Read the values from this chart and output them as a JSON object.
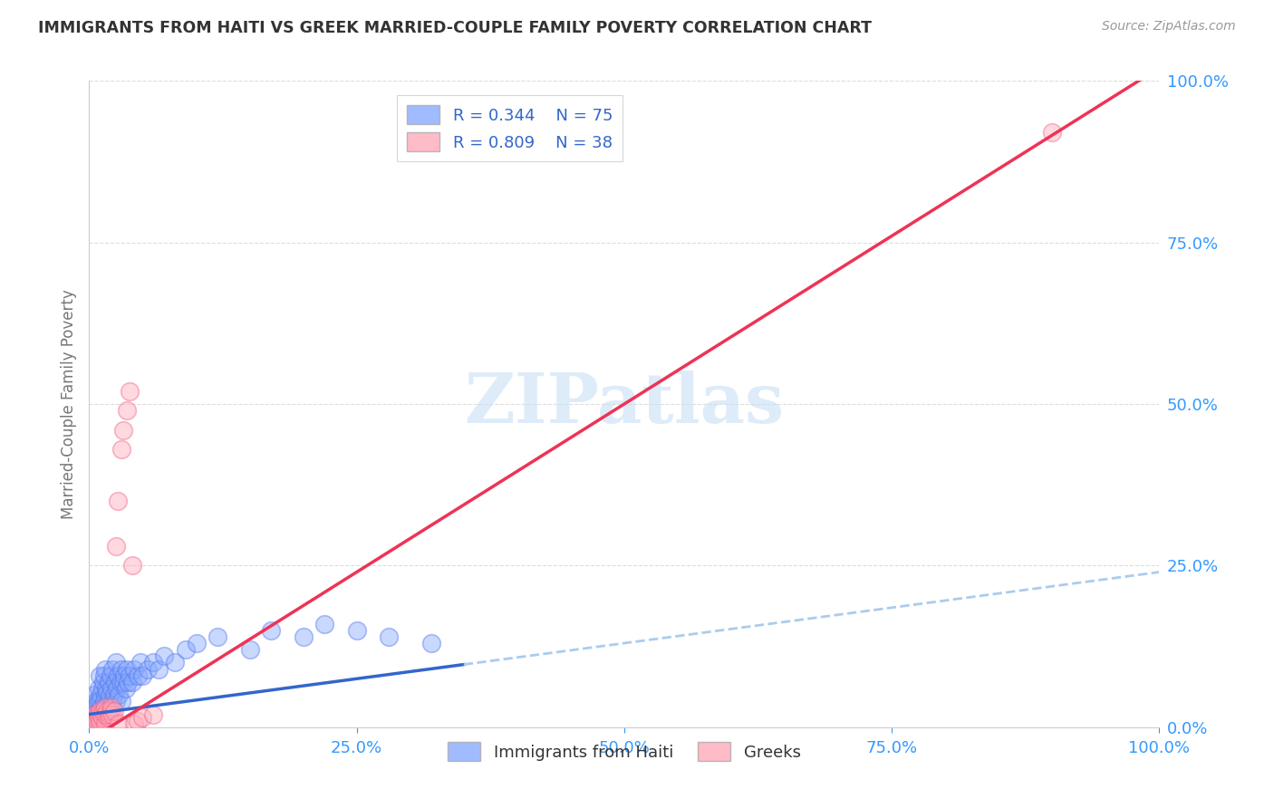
{
  "title": "IMMIGRANTS FROM HAITI VS GREEK MARRIED-COUPLE FAMILY POVERTY CORRELATION CHART",
  "source": "Source: ZipAtlas.com",
  "ylabel": "Married-Couple Family Poverty",
  "xlim": [
    0.0,
    1.0
  ],
  "ylim": [
    0.0,
    1.0
  ],
  "xtick_labels": [
    "0.0%",
    "25.0%",
    "50.0%",
    "75.0%",
    "100.0%"
  ],
  "xtick_positions": [
    0.0,
    0.25,
    0.5,
    0.75,
    1.0
  ],
  "ytick_right_labels": [
    "0.0%",
    "25.0%",
    "50.0%",
    "75.0%",
    "100.0%"
  ],
  "ytick_positions": [
    0.0,
    0.25,
    0.5,
    0.75,
    1.0
  ],
  "haiti_color": "#88aaff",
  "haiti_edge_color": "#5577ee",
  "greek_color": "#ffaabb",
  "greek_edge_color": "#ee6688",
  "haiti_trend_color": "#3366cc",
  "greek_trend_color": "#ee3355",
  "haiti_dash_color": "#aaccee",
  "haiti_R": 0.344,
  "haiti_N": 75,
  "greek_R": 0.809,
  "greek_N": 38,
  "legend_label_haiti": "Immigrants from Haiti",
  "legend_label_greek": "Greeks",
  "watermark": "ZIPatlas",
  "background_color": "#ffffff",
  "grid_color": "#dddddd",
  "axis_color": "#cccccc",
  "title_color": "#333333",
  "tick_color": "#3399ff",
  "haiti_trend_intercept": 0.02,
  "haiti_trend_slope": 0.22,
  "greek_trend_intercept": -0.02,
  "greek_trend_slope": 1.04,
  "haiti_scatter_x": [
    0.002,
    0.003,
    0.004,
    0.005,
    0.005,
    0.006,
    0.006,
    0.007,
    0.007,
    0.008,
    0.008,
    0.009,
    0.009,
    0.01,
    0.01,
    0.01,
    0.011,
    0.011,
    0.012,
    0.012,
    0.013,
    0.013,
    0.014,
    0.014,
    0.015,
    0.015,
    0.015,
    0.016,
    0.016,
    0.017,
    0.017,
    0.018,
    0.018,
    0.019,
    0.02,
    0.02,
    0.021,
    0.022,
    0.022,
    0.023,
    0.024,
    0.025,
    0.025,
    0.026,
    0.027,
    0.028,
    0.029,
    0.03,
    0.03,
    0.032,
    0.033,
    0.034,
    0.035,
    0.036,
    0.038,
    0.04,
    0.042,
    0.045,
    0.048,
    0.05,
    0.055,
    0.06,
    0.065,
    0.07,
    0.08,
    0.09,
    0.1,
    0.12,
    0.15,
    0.17,
    0.2,
    0.22,
    0.25,
    0.28,
    0.32
  ],
  "haiti_scatter_y": [
    0.01,
    0.02,
    0.015,
    0.03,
    0.05,
    0.02,
    0.04,
    0.015,
    0.035,
    0.02,
    0.04,
    0.025,
    0.06,
    0.02,
    0.04,
    0.08,
    0.03,
    0.05,
    0.02,
    0.06,
    0.03,
    0.07,
    0.04,
    0.08,
    0.02,
    0.05,
    0.09,
    0.03,
    0.06,
    0.025,
    0.055,
    0.04,
    0.07,
    0.05,
    0.03,
    0.08,
    0.06,
    0.04,
    0.09,
    0.05,
    0.07,
    0.04,
    0.1,
    0.06,
    0.08,
    0.05,
    0.07,
    0.04,
    0.09,
    0.07,
    0.08,
    0.06,
    0.09,
    0.07,
    0.08,
    0.07,
    0.09,
    0.08,
    0.1,
    0.08,
    0.09,
    0.1,
    0.09,
    0.11,
    0.1,
    0.12,
    0.13,
    0.14,
    0.12,
    0.15,
    0.14,
    0.16,
    0.15,
    0.14,
    0.13
  ],
  "greek_scatter_x": [
    0.002,
    0.003,
    0.004,
    0.005,
    0.005,
    0.006,
    0.007,
    0.008,
    0.009,
    0.01,
    0.01,
    0.011,
    0.012,
    0.013,
    0.014,
    0.015,
    0.015,
    0.016,
    0.017,
    0.018,
    0.019,
    0.02,
    0.021,
    0.022,
    0.023,
    0.025,
    0.027,
    0.028,
    0.03,
    0.032,
    0.035,
    0.038,
    0.04,
    0.042,
    0.045,
    0.05,
    0.06,
    0.9
  ],
  "greek_scatter_y": [
    0.01,
    0.015,
    0.01,
    0.02,
    0.005,
    0.015,
    0.01,
    0.02,
    0.015,
    0.01,
    0.025,
    0.02,
    0.015,
    0.025,
    0.02,
    0.03,
    0.005,
    0.02,
    0.025,
    0.015,
    0.02,
    0.025,
    0.03,
    0.02,
    0.025,
    0.28,
    0.35,
    0.005,
    0.43,
    0.46,
    0.49,
    0.52,
    0.25,
    0.005,
    0.01,
    0.015,
    0.02,
    0.92
  ]
}
